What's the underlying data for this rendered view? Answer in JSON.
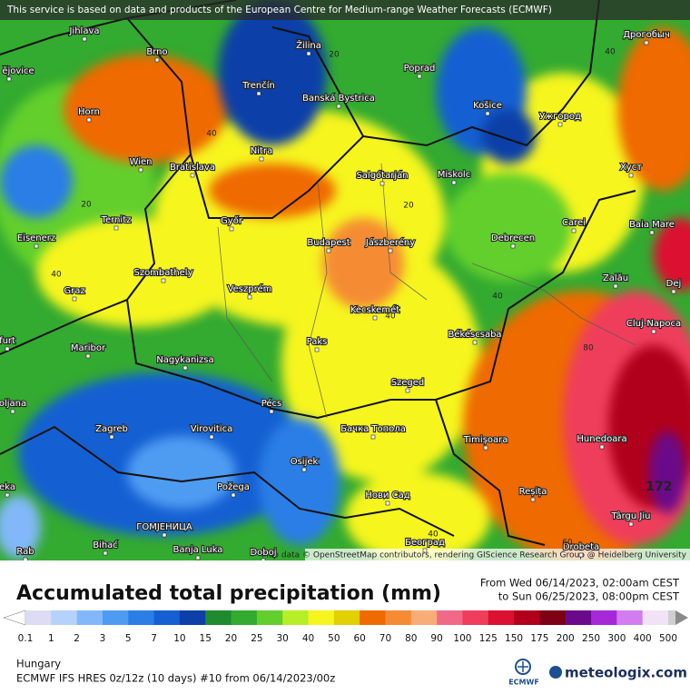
{
  "banner": "This service is based on data and products of the European Centre for Medium-range Weather Forecasts (ECMWF)",
  "attribution": "Map data © OpenStreetMap contributors, rendering GIScience Research Group @ Heidelberg University",
  "cities": [
    "Jihlava",
    "Brno",
    "Žilina",
    "Poprad",
    "Дрогобыч",
    "Trenčín",
    "Banská Bystrica",
    "Košice",
    "Ужгород",
    "Horn",
    "Nitra",
    "Wien",
    "Bratislava",
    "Salgótarján",
    "Miskolc",
    "Хуст",
    "Ternitz",
    "Győr",
    "Carei",
    "Baia Mare",
    "Eisenerz",
    "Budapest",
    "Jászberény",
    "Debrecen",
    "Szombathely",
    "Zalău",
    "Graz",
    "Veszprém",
    "Dej",
    "Kecskemét",
    "Cluj-Napoca",
    "Maribor",
    "Paks",
    "Békéscsaba",
    "Nagykanizsa",
    "Szeged",
    "Pécs",
    "Zagreb",
    "Virovitica",
    "Бачка Топола",
    "Timișoara",
    "Hunedoara",
    "Osijek",
    "Požega",
    "Reșița",
    "Нови Сад",
    "Târgu Jiu",
    "ГОМЈЕНИЦА",
    "Bihać",
    "Banja Luka",
    "Doboj",
    "Београд",
    "Drobeta",
    "Rab",
    "furt",
    "oljana",
    "eka",
    "ské ějovice"
  ],
  "contour_labels": [
    40,
    20,
    20,
    20,
    40,
    40,
    40,
    40,
    80,
    40,
    60,
    172
  ],
  "title": "Accumulated total precipitation (mm)",
  "period_from": "From Wed 06/14/2023, 02:00am CEST",
  "period_to": "to Sun 06/25/2023, 08:00pm CEST",
  "legend": {
    "ticks": [
      0.1,
      1,
      2,
      3,
      5,
      7,
      10,
      15,
      20,
      25,
      30,
      40,
      50,
      60,
      70,
      80,
      90,
      100,
      125,
      150,
      175,
      200,
      250,
      300,
      400,
      500
    ],
    "colors": [
      "#ffffff",
      "#dcdcf4",
      "#b4d2fa",
      "#82b8fa",
      "#4e9cf2",
      "#2a7ee6",
      "#1460d2",
      "#0c40a8",
      "#1f8a2e",
      "#33aa30",
      "#62cf2c",
      "#b6ee28",
      "#f6f51e",
      "#e2d000",
      "#ef6a00",
      "#f58c34",
      "#f8ac78",
      "#f06a88",
      "#ef3e5c",
      "#dc1030",
      "#b0001c",
      "#7e0014",
      "#6a0a8a",
      "#a628d8",
      "#d27cf0",
      "#f2e2f8",
      "#cfcfcf",
      "#8a8a8a"
    ]
  },
  "region": "Hungary",
  "model": "ECMWF IFS HRES 0z/12z (10 days) #10 from  06/14/2023/00z",
  "ecmwf": "ECMWF",
  "brand": "meteologix.com"
}
